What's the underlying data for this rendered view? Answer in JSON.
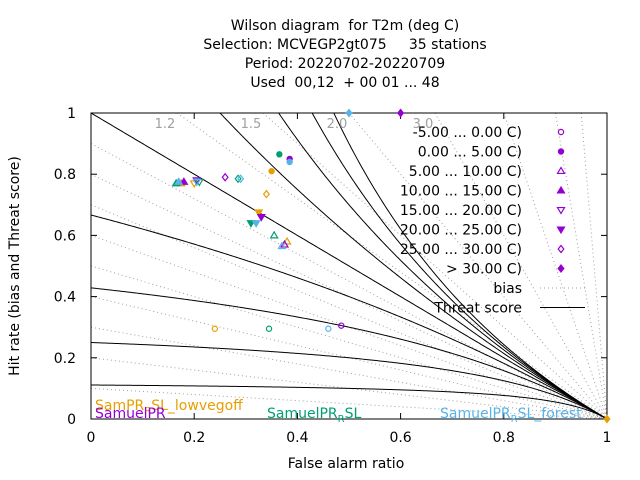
{
  "title_lines": [
    "Wilson diagram  for T2m (deg C)",
    "Selection: MCVEGP2gt075     35 stations",
    "Period: 20220702-20220709",
    "Used  00,12  + 00 01 ... 48"
  ],
  "chart_data": {
    "type": "scatter",
    "xlabel": "False alarm ratio",
    "ylabel": "Hit rate (bias and Threat score)",
    "xlim": [
      0,
      1
    ],
    "ylim": [
      0,
      1
    ],
    "x_ticks": [
      "0",
      "0.2",
      "0.4",
      "0.6",
      "0.8",
      "1"
    ],
    "y_ticks": [
      "0",
      "0.2",
      "0.4",
      "0.6",
      "0.8",
      "1"
    ],
    "bias_lines": [
      0.1,
      0.2,
      0.3,
      0.4,
      0.5,
      0.6,
      0.7,
      0.8,
      0.9,
      1.0,
      1.2,
      1.5,
      2.0,
      3.0,
      5.0,
      10.0,
      20.0
    ],
    "bias_labels": [
      {
        "value": 1.2,
        "text": "1.2"
      },
      {
        "value": 1.5,
        "text": "1.5"
      },
      {
        "value": 2.0,
        "text": "2.0"
      },
      {
        "value": 3.0,
        "text": "3.0"
      }
    ],
    "threat_score_lines": [
      0.1,
      0.2,
      0.3,
      0.4,
      0.5,
      0.6,
      0.7,
      0.8,
      0.9
    ],
    "legend": [
      {
        "label": "-5.00 ... 0.00 C)",
        "marker": "circle-open",
        "color": "#9400d3"
      },
      {
        "label": "0.00 ... 5.00 C)",
        "marker": "circle-filled",
        "color": "#9400d3"
      },
      {
        "label": "5.00 ... 10.00 C)",
        "marker": "triangle-open",
        "color": "#9400d3"
      },
      {
        "label": "10.00 ... 15.00 C)",
        "marker": "triangle-filled",
        "color": "#9400d3"
      },
      {
        "label": "15.00 ... 20.00 C)",
        "marker": "down-triangle-open",
        "color": "#9400d3"
      },
      {
        "label": "20.00 ... 25.00 C)",
        "marker": "down-triangle-filled",
        "color": "#9400d3"
      },
      {
        "label": "25.00 ... 30.00 C)",
        "marker": "diamond-open",
        "color": "#9400d3"
      },
      {
        "label": "> 30.00 C)",
        "marker": "diamond-filled",
        "color": "#9400d3"
      },
      {
        "label": "bias",
        "marker": "line-dotted",
        "color": "#a0a0a0"
      },
      {
        "label": "Threat score",
        "marker": "line-solid",
        "color": "#000000"
      }
    ],
    "series": [
      {
        "name": "SamPR_RSL_lowvegoff",
        "color": "#e69f00",
        "points": [
          {
            "x": 0.24,
            "y": 0.295,
            "m": "circle-open"
          },
          {
            "x": 0.35,
            "y": 0.81,
            "m": "circle-filled"
          },
          {
            "x": 0.175,
            "y": 0.77,
            "m": "triangle-filled"
          },
          {
            "x": 0.38,
            "y": 0.58,
            "m": "triangle-open"
          },
          {
            "x": 0.2,
            "y": 0.77,
            "m": "down-triangle-open"
          },
          {
            "x": 0.325,
            "y": 0.675,
            "m": "down-triangle-filled"
          },
          {
            "x": 0.34,
            "y": 0.735,
            "m": "diamond-open"
          },
          {
            "x": 1.0,
            "y": 0.0,
            "m": "diamond-filled"
          }
        ]
      },
      {
        "name": "SamuelPR",
        "color": "#9400d3",
        "points": [
          {
            "x": 0.485,
            "y": 0.305,
            "m": "circle-open"
          },
          {
            "x": 0.385,
            "y": 0.85,
            "m": "circle-filled"
          },
          {
            "x": 0.18,
            "y": 0.775,
            "m": "triangle-filled"
          },
          {
            "x": 0.375,
            "y": 0.57,
            "m": "triangle-open"
          },
          {
            "x": 0.205,
            "y": 0.78,
            "m": "down-triangle-open"
          },
          {
            "x": 0.33,
            "y": 0.66,
            "m": "down-triangle-filled"
          },
          {
            "x": 0.26,
            "y": 0.79,
            "m": "diamond-open"
          },
          {
            "x": 0.6,
            "y": 1.0,
            "m": "diamond-filled"
          }
        ]
      },
      {
        "name": "SamuelPR_RSL",
        "color": "#009e73",
        "points": [
          {
            "x": 0.345,
            "y": 0.295,
            "m": "circle-open"
          },
          {
            "x": 0.365,
            "y": 0.865,
            "m": "circle-filled"
          },
          {
            "x": 0.165,
            "y": 0.77,
            "m": "triangle-filled"
          },
          {
            "x": 0.355,
            "y": 0.6,
            "m": "triangle-open"
          },
          {
            "x": 0.21,
            "y": 0.775,
            "m": "down-triangle-open"
          },
          {
            "x": 0.31,
            "y": 0.64,
            "m": "down-triangle-filled"
          },
          {
            "x": 0.285,
            "y": 0.785,
            "m": "diamond-open"
          }
        ]
      },
      {
        "name": "SamuelPR_RSL_forest",
        "color": "#56b4e9",
        "points": [
          {
            "x": 0.46,
            "y": 0.295,
            "m": "circle-open"
          },
          {
            "x": 0.385,
            "y": 0.84,
            "m": "circle-filled"
          },
          {
            "x": 0.17,
            "y": 0.775,
            "m": "triangle-filled"
          },
          {
            "x": 0.37,
            "y": 0.565,
            "m": "triangle-open"
          },
          {
            "x": 0.205,
            "y": 0.775,
            "m": "down-triangle-open"
          },
          {
            "x": 0.32,
            "y": 0.64,
            "m": "down-triangle-filled"
          },
          {
            "x": 0.29,
            "y": 0.785,
            "m": "diamond-open"
          },
          {
            "x": 0.5,
            "y": 1.0,
            "m": "diamond-filled"
          }
        ]
      }
    ],
    "experiment_labels": [
      {
        "text": "SamPR_RSL_lowvegoff",
        "main": "SamPR",
        "sub": "R",
        "rest": "SL_lowvegoff",
        "color": "#e69f00"
      },
      {
        "text": "SamuelPR",
        "main": "SamuelPR",
        "sub": "",
        "rest": "",
        "color": "#9400d3"
      },
      {
        "text": "SamuelPR_RSL",
        "main": "SamuelPR",
        "sub": "R",
        "rest": "SL",
        "color": "#009e73"
      },
      {
        "text": "SamuelPR_RSL_forest",
        "main": "SamuelPR",
        "sub": "R",
        "rest": "SL_forest",
        "color": "#56b4e9"
      }
    ]
  }
}
